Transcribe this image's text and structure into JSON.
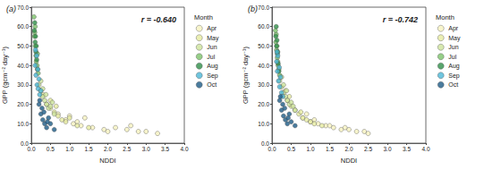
{
  "chart_data": [
    {
      "type": "scatter",
      "title": "(a)",
      "annotation": "r = -0.640",
      "x_label": "NDDI",
      "y_label": "GPP (gcm⁻² day⁻¹)",
      "legend": "right",
      "legend_title": "Month",
      "grid": false,
      "marker": "circle",
      "xlim": [
        0,
        4
      ],
      "xticks": [
        {
          "value": 0,
          "label": "0.0"
        },
        {
          "value": 0.5,
          "label": "0.5"
        },
        {
          "value": 1,
          "label": "1.0"
        },
        {
          "value": 1.5,
          "label": "1.5"
        },
        {
          "value": 2,
          "label": "2.0"
        },
        {
          "value": 2.5,
          "label": "2.5"
        },
        {
          "value": 3,
          "label": "3.0"
        },
        {
          "value": 3.5,
          "label": "3.5"
        },
        {
          "value": 4,
          "label": "4.0"
        }
      ],
      "ylim": [
        0,
        70
      ],
      "yticks": [
        {
          "value": 0,
          "label": "0.0"
        },
        {
          "value": 10,
          "label": "10.0"
        },
        {
          "value": 20,
          "label": "20.0"
        },
        {
          "value": 30,
          "label": "30.0"
        },
        {
          "value": 40,
          "label": "40.0"
        },
        {
          "value": 50,
          "label": "50.0"
        },
        {
          "value": 60,
          "label": "60.0"
        },
        {
          "value": 70,
          "label": "70.0"
        }
      ],
      "series": [
        {
          "name": "Apr",
          "color": "#f6f3bf",
          "x": [
            0.9,
            1.1,
            1.3,
            1.6,
            1.9,
            2.2,
            2.5,
            2.8,
            3.0,
            3.3,
            1.4,
            2.0,
            0.7,
            1.0,
            2.6,
            1.2
          ],
          "values": [
            12,
            10,
            9,
            8,
            7,
            8,
            7,
            6,
            6,
            5,
            13,
            6,
            15,
            14,
            9,
            11
          ]
        },
        {
          "name": "May",
          "color": "#e6eba0",
          "x": [
            0.4,
            0.5,
            0.6,
            0.7,
            0.8,
            0.9,
            1.2,
            0.5,
            0.3,
            1.5,
            0.65,
            1.0
          ],
          "values": [
            20,
            18,
            16,
            14,
            12,
            11,
            9,
            22,
            25,
            8,
            19,
            13
          ]
        },
        {
          "name": "Jun",
          "color": "#cde49b",
          "x": [
            0.2,
            0.25,
            0.3,
            0.35,
            0.4,
            0.3,
            0.45,
            0.5,
            0.25,
            0.6,
            0.38,
            0.55
          ],
          "values": [
            30,
            27,
            24,
            22,
            20,
            28,
            18,
            19,
            32,
            15,
            25,
            21
          ]
        },
        {
          "name": "Jul",
          "color": "#7cc36a",
          "x": [
            0.08,
            0.1,
            0.12,
            0.15,
            0.1,
            0.07,
            0.13,
            0.18,
            0.09,
            0.16
          ],
          "values": [
            55,
            50,
            45,
            40,
            60,
            65,
            42,
            36,
            57,
            46
          ]
        },
        {
          "name": "Aug",
          "color": "#2f8f48",
          "x": [
            0.08,
            0.1,
            0.12,
            0.09,
            0.14,
            0.11,
            0.16,
            0.13
          ],
          "values": [
            58,
            52,
            47,
            62,
            43,
            55,
            38,
            50
          ]
        },
        {
          "name": "Sep",
          "color": "#4bb6d6",
          "x": [
            0.1,
            0.12,
            0.15,
            0.18,
            0.2,
            0.14,
            0.22,
            0.11,
            0.17,
            0.25
          ],
          "values": [
            40,
            35,
            30,
            28,
            33,
            45,
            25,
            48,
            38,
            27
          ]
        },
        {
          "name": "Oct",
          "color": "#1d5b86",
          "x": [
            0.2,
            0.25,
            0.3,
            0.35,
            0.4,
            0.28,
            0.45,
            0.5,
            0.22,
            0.6,
            0.33,
            0.42
          ],
          "values": [
            20,
            15,
            12,
            10,
            8,
            18,
            13,
            10,
            22,
            7,
            16,
            11
          ]
        }
      ]
    },
    {
      "type": "scatter",
      "title": "(b)",
      "annotation": "r = -0.742",
      "x_label": "NDDI",
      "y_label": "GPP (gcm⁻² day⁻¹)",
      "legend": "right",
      "legend_title": "Month",
      "grid": false,
      "marker": "circle",
      "xlim": [
        0,
        4
      ],
      "xticks": [
        {
          "value": 0,
          "label": "0.0"
        },
        {
          "value": 0.5,
          "label": "0.5"
        },
        {
          "value": 1,
          "label": "1.0"
        },
        {
          "value": 1.5,
          "label": "1.5"
        },
        {
          "value": 2,
          "label": "2.0"
        },
        {
          "value": 2.5,
          "label": "2.5"
        },
        {
          "value": 3,
          "label": "3.0"
        },
        {
          "value": 3.5,
          "label": "3.5"
        },
        {
          "value": 4,
          "label": "4.0"
        }
      ],
      "ylim": [
        0,
        70
      ],
      "yticks": [
        {
          "value": 0,
          "label": "0.0"
        },
        {
          "value": 10,
          "label": "10.0"
        },
        {
          "value": 20,
          "label": "20.0"
        },
        {
          "value": 30,
          "label": "30.0"
        },
        {
          "value": 40,
          "label": "40.0"
        },
        {
          "value": 50,
          "label": "50.0"
        },
        {
          "value": 60,
          "label": "60.0"
        },
        {
          "value": 70,
          "label": "70.0"
        }
      ],
      "series": [
        {
          "name": "Apr",
          "color": "#f6f3bf",
          "x": [
            0.8,
            1.0,
            1.2,
            1.4,
            1.6,
            1.8,
            2.0,
            2.2,
            2.4,
            1.1,
            1.5,
            0.9,
            1.9,
            2.5
          ],
          "values": [
            13,
            11,
            10,
            9,
            8,
            7,
            7,
            6,
            6,
            12,
            9,
            15,
            8,
            5
          ]
        },
        {
          "name": "May",
          "color": "#e6eba0",
          "x": [
            0.4,
            0.5,
            0.6,
            0.7,
            0.8,
            0.9,
            1.1,
            0.45,
            0.35,
            1.3,
            0.75,
            1.0
          ],
          "values": [
            22,
            19,
            17,
            15,
            13,
            12,
            10,
            24,
            27,
            9,
            16,
            11
          ]
        },
        {
          "name": "Jun",
          "color": "#cde49b",
          "x": [
            0.2,
            0.25,
            0.3,
            0.35,
            0.4,
            0.3,
            0.45,
            0.5,
            0.25,
            0.6,
            0.38,
            0.55
          ],
          "values": [
            32,
            29,
            26,
            24,
            22,
            30,
            20,
            21,
            34,
            17,
            27,
            19
          ]
        },
        {
          "name": "Jul",
          "color": "#7cc36a",
          "x": [
            0.1,
            0.12,
            0.14,
            0.16,
            0.11,
            0.09,
            0.15,
            0.2,
            0.13,
            0.18
          ],
          "values": [
            52,
            48,
            44,
            40,
            56,
            58,
            42,
            35,
            50,
            38
          ]
        },
        {
          "name": "Aug",
          "color": "#2f8f48",
          "x": [
            0.1,
            0.12,
            0.14,
            0.11,
            0.16,
            0.13,
            0.18,
            0.15
          ],
          "values": [
            55,
            50,
            46,
            60,
            41,
            53,
            37,
            47
          ]
        },
        {
          "name": "Sep",
          "color": "#4bb6d6",
          "x": [
            0.12,
            0.14,
            0.17,
            0.2,
            0.22,
            0.15,
            0.25,
            0.13,
            0.19,
            0.28
          ],
          "values": [
            42,
            37,
            32,
            29,
            34,
            45,
            26,
            47,
            39,
            24
          ]
        },
        {
          "name": "Oct",
          "color": "#1d5b86",
          "x": [
            0.2,
            0.25,
            0.3,
            0.35,
            0.4,
            0.28,
            0.45,
            0.5,
            0.22,
            0.6,
            0.33,
            0.42
          ],
          "values": [
            22,
            17,
            14,
            12,
            10,
            20,
            15,
            11,
            24,
            9,
            18,
            13
          ]
        }
      ]
    }
  ]
}
